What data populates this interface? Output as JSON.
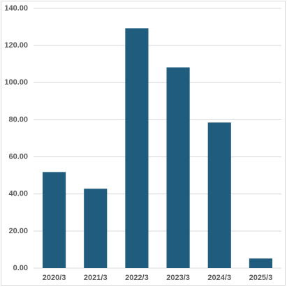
{
  "chart_data": {
    "type": "bar",
    "categories": [
      "2020/3",
      "2021/3",
      "2022/3",
      "2023/3",
      "2024/3",
      "2025/3"
    ],
    "values": [
      51.8,
      42.8,
      129.3,
      108.2,
      78.5,
      5.2
    ],
    "color": "#1f5c7e",
    "ylim": [
      0,
      140
    ],
    "yticks": [
      {
        "value": 0,
        "label": "0.00"
      },
      {
        "value": 20,
        "label": "20.00"
      },
      {
        "value": 40,
        "label": "40.00"
      },
      {
        "value": 60,
        "label": "60.00"
      },
      {
        "value": 80,
        "label": "80.00"
      },
      {
        "value": 100,
        "label": "100.00"
      },
      {
        "value": 120,
        "label": "120.00"
      },
      {
        "value": 140,
        "label": "140.00"
      }
    ],
    "grid": true
  }
}
